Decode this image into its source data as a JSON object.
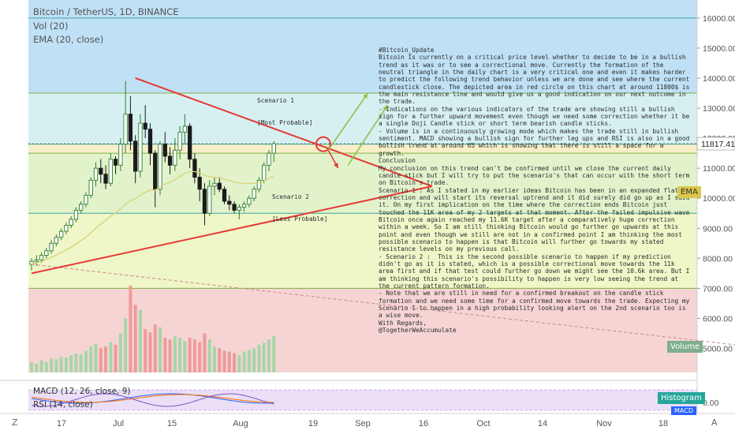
{
  "header": {
    "title": "Bitcoin / TetherUS, 1D, BINANCE",
    "indicators": [
      "Vol (20)",
      "EMA (20, close)"
    ]
  },
  "colors": {
    "up": "#2e7d32",
    "down": "#1b1b1b",
    "pattern": "#e53935",
    "projection": "#8bc34a",
    "ema": "#d8d27a",
    "volume_up": "#a5d6a7",
    "volume_down": "#ef9a9a"
  },
  "price_axis": {
    "labels": [
      "16000.00",
      "15000.00",
      "14000.00",
      "13000.00",
      "12000.00",
      "11000.00",
      "10000.00",
      "9000.00",
      "8000.00",
      "7000.00",
      "6000.00",
      "5000.00"
    ],
    "current_price": "11817.41"
  },
  "time_axis": {
    "labels": [
      "17",
      "Jul",
      "15",
      "Aug",
      "19",
      "Sep",
      "16",
      "Oct",
      "14",
      "Nov",
      "18"
    ],
    "zoom_button": "Z",
    "auto_button": "A"
  },
  "annotations": {
    "scenario_1": [
      "Scenario 1",
      "[Most Probable]"
    ],
    "scenario_2": [
      "Scenario 2",
      "[Less Probable]"
    ],
    "note": "#Bitcoin_Update\nBitcoin Is currently on a critical price level whether to decide to be in a bullish trend as it was or to see a correctional move. Currently the formation of the neutral triangle in the daily chart is a very critical one and even it makes harder to predict the following trend behavior unless we are done and see where the current candlestick close. The depicted area in red circle on this chart at around 11800$ is the main resistance line and would give us a good indication on our next outcome in the trade.\n- Indications on the various indicators of the trade are showing still a bullish sign for a further upward movement even though we need some correction whether it be a single Doji Candle stick or short term bearish candle sticks.\n- Volume is in a continuously growing mode which makes the trade still in bullish sentiment. MACD showing a bullish sign for further leg ups and RSI is also in a good bullish trend at around 65 which is showing that there is still a space for a growth.\nConclusion\nMy conclusion on this trend can't be confirmed until we close the current daily candle stick but I will try to put the scenario's that can occur with the short term on Bitcoin's trade.\nScenario 1 : As I stated in my earlier ideas Bitcoin has been in an expanded flat correction and will start its reversal uptrend and it did surely did go up as I said it. On my first implication on the time where the correction ends Bitcoin just touched the 11K area of my 2 targets at that moment. After the failed impulsive wave Bitcoin once again reached my 11.6K target after a comparatively huge correction within a week. So I am still thinking Bitcoin would go further go upwards at this point and even though we still are not in a confirmed point I am thinking the most possible scenario to happen is that Bitcoin will further go towards my stated resistance levels on my previous call.\n- Scenario 2 :  This is the second possible scenario to happen if my prediction didn't go as it is stated, which is a possible correctional move towards the 11k area first and if that test could further go down we might see the 10.6k area. But I am thinking this scenario's possibility to happen is very low seeing the trend at the current pattern formation.\n- Note that we are still in need for a confirmed breakout on the candle stick formation and we need some time for a confirmed move towards the trade. Expecting my Scenario 1 to happen in a high probability looking alert on the 2nd scenario too is a wise move.\nWith Regards,\n@TogetherWeAccumulate"
  },
  "badges": {
    "ema": "EMA",
    "volume": "Volume",
    "histogram": "Histogram",
    "macd_tag": "MACD"
  },
  "lower_panes": {
    "macd": "MACD (12, 26, close, 9)",
    "rsi": "RSI (14, close)",
    "axis_label": "0.00"
  },
  "chart_data": {
    "type": "candlestick",
    "title": "Bitcoin / TetherUS, 1D, BINANCE",
    "ylim": [
      4200,
      16600
    ],
    "ylabel": "",
    "xlabel": "",
    "start_date": "2019-06-05",
    "horizontal_levels": [
      16000,
      13500,
      11800,
      11500,
      9500,
      7000
    ],
    "zones": [
      {
        "from": 13500,
        "to": 16600,
        "color": "#bfe0f5"
      },
      {
        "from": 11800,
        "to": 13500,
        "color": "#d6f0f2"
      },
      {
        "from": 11500,
        "to": 11800,
        "color": "#f7efc8"
      },
      {
        "from": 9500,
        "to": 11500,
        "color": "#e2f3cc"
      },
      {
        "from": 7000,
        "to": 9500,
        "color": "#eff6c8"
      },
      {
        "from": 4200,
        "to": 7000,
        "color": "#f6d4d4"
      }
    ],
    "ohlc": [
      [
        7800,
        8000,
        7600,
        7900
      ],
      [
        7900,
        8100,
        7750,
        7950
      ],
      [
        7950,
        8200,
        7850,
        8100
      ],
      [
        8100,
        8350,
        8000,
        8250
      ],
      [
        8250,
        8600,
        8150,
        8500
      ],
      [
        8500,
        8800,
        8400,
        8700
      ],
      [
        8700,
        9000,
        8600,
        8900
      ],
      [
        8900,
        9200,
        8800,
        9100
      ],
      [
        9100,
        9400,
        9000,
        9300
      ],
      [
        9300,
        9700,
        9200,
        9600
      ],
      [
        9600,
        9900,
        9500,
        9800
      ],
      [
        9800,
        10200,
        9700,
        10100
      ],
      [
        10100,
        10700,
        10000,
        10600
      ],
      [
        10600,
        11200,
        10400,
        11000
      ],
      [
        11000,
        11300,
        10500,
        10800
      ],
      [
        10800,
        11100,
        10300,
        10500
      ],
      [
        10500,
        11500,
        10400,
        11300
      ],
      [
        11300,
        11400,
        10800,
        11100
      ],
      [
        11100,
        12000,
        10900,
        11800
      ],
      [
        11800,
        13900,
        11500,
        12800
      ],
      [
        12800,
        13400,
        11600,
        11900
      ],
      [
        11900,
        12100,
        10500,
        10900
      ],
      [
        10900,
        12800,
        10700,
        12500
      ],
      [
        12500,
        13100,
        12000,
        12300
      ],
      [
        12300,
        12500,
        11100,
        11500
      ],
      [
        11500,
        11600,
        9700,
        10300
      ],
      [
        10300,
        11900,
        10100,
        11800
      ],
      [
        11800,
        12200,
        11200,
        11400
      ],
      [
        11400,
        11700,
        10800,
        11100
      ],
      [
        11100,
        12000,
        10900,
        11600
      ],
      [
        11600,
        12400,
        11300,
        12200
      ],
      [
        12200,
        12800,
        11800,
        12400
      ],
      [
        12400,
        12500,
        11000,
        11300
      ],
      [
        11300,
        11500,
        10500,
        10700
      ],
      [
        10700,
        11000,
        9900,
        10300
      ],
      [
        10300,
        10500,
        9100,
        9500
      ],
      [
        9500,
        10600,
        9400,
        10400
      ],
      [
        10400,
        10700,
        10100,
        10500
      ],
      [
        10500,
        10700,
        10200,
        10300
      ],
      [
        10300,
        10400,
        9800,
        9900
      ],
      [
        9900,
        10100,
        9600,
        9800
      ],
      [
        9800,
        9900,
        9500,
        9600
      ],
      [
        9600,
        9800,
        9300,
        9700
      ],
      [
        9700,
        9900,
        9550,
        9800
      ],
      [
        9800,
        10100,
        9700,
        10000
      ],
      [
        10000,
        10400,
        9900,
        10300
      ],
      [
        10300,
        10700,
        10200,
        10600
      ],
      [
        10600,
        11200,
        10500,
        11100
      ],
      [
        11100,
        11600,
        10900,
        11500
      ],
      [
        11500,
        11900,
        11200,
        11817.41
      ]
    ],
    "ema": [
      7800,
      7850,
      7900,
      7960,
      8030,
      8110,
      8190,
      8280,
      8370,
      8480,
      8590,
      8710,
      8850,
      9000,
      9140,
      9260,
      9400,
      9520,
      9650,
      9800,
      9920,
      9980,
      10100,
      10200,
      10270,
      10270,
      10380,
      10470,
      10530,
      10620,
      10730,
      10840,
      10890,
      10890,
      10850,
      10760,
      10720,
      10700,
      10670,
      10630,
      10590,
      10540,
      10510,
      10490,
      10490,
      10500,
      10520,
      10580,
      10660,
      10750
    ],
    "volume": [
      0.12,
      0.1,
      0.14,
      0.12,
      0.16,
      0.15,
      0.18,
      0.17,
      0.2,
      0.22,
      0.21,
      0.25,
      0.3,
      0.33,
      0.28,
      0.3,
      0.35,
      0.32,
      0.45,
      0.62,
      1.0,
      0.78,
      0.72,
      0.5,
      0.46,
      0.55,
      0.52,
      0.4,
      0.38,
      0.42,
      0.4,
      0.36,
      0.4,
      0.38,
      0.35,
      0.45,
      0.38,
      0.3,
      0.28,
      0.25,
      0.24,
      0.22,
      0.2,
      0.24,
      0.26,
      0.28,
      0.32,
      0.34,
      0.38,
      0.42
    ],
    "triangle": {
      "upper": [
        [
          "2019-06-26",
          14000
        ],
        [
          "2019-08-25",
          10400
        ]
      ],
      "lower": [
        [
          "2019-06-05",
          7500
        ],
        [
          "2019-08-25",
          10400
        ]
      ]
    },
    "resistance_circle": [
      "2019-08-03",
      11800
    ],
    "scenario_paths": {
      "scenario_1": [
        [
          "2019-08-04",
          11600
        ],
        [
          "2019-08-12",
          13500
        ]
      ],
      "scenario_2": [
        [
          "2019-08-04",
          11600
        ],
        [
          "2019-08-06",
          11000
        ]
      ],
      "alt_up": [
        [
          "2019-08-08",
          11100
        ],
        [
          "2019-08-16",
          13100
        ]
      ]
    },
    "long_term_trend": [
      [
        "2019-06-05",
        7800
      ],
      [
        "2019-11-22",
        4600
      ]
    ]
  }
}
